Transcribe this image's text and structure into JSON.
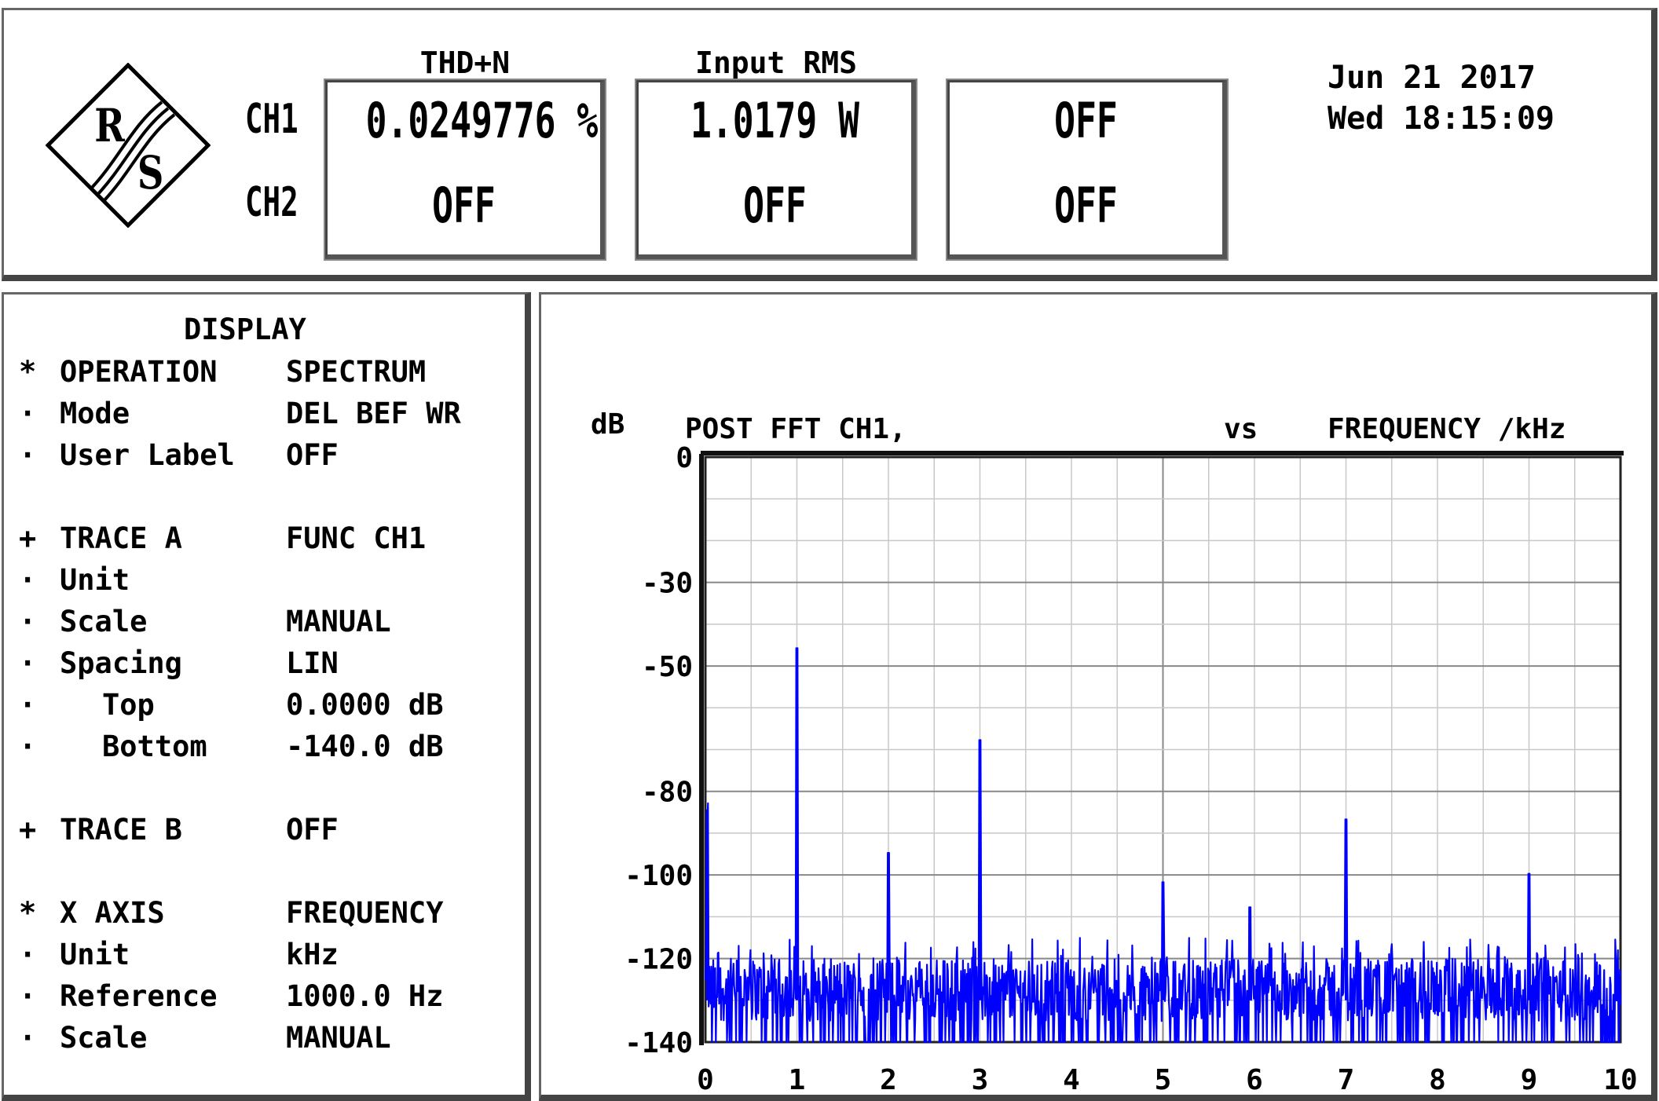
{
  "logo": {
    "icon": "rs-diamond-logo",
    "text": "R/S"
  },
  "channels": [
    "CH1",
    "CH2"
  ],
  "measurements": [
    {
      "header": "THD+N",
      "ch1": "0.0249776 %",
      "ch2": "OFF"
    },
    {
      "header": "Input RMS",
      "ch1": "1.0179  W",
      "ch2": "OFF"
    },
    {
      "header": "",
      "ch1": "OFF",
      "ch2": "OFF"
    }
  ],
  "datetime": {
    "date": "Jun 21 2017",
    "daytime": "Wed 18:15:09"
  },
  "menu": {
    "title": "DISPLAY",
    "rows": [
      {
        "marker": "*",
        "label": "OPERATION",
        "value": "SPECTRUM",
        "indent": false
      },
      {
        "marker": "·",
        "label": "Mode",
        "value": "DEL BEF WR",
        "indent": false
      },
      {
        "marker": "·",
        "label": "User Label",
        "value": "OFF",
        "indent": false
      },
      {
        "marker": "+",
        "label": "TRACE A",
        "value": "FUNC CH1",
        "indent": false
      },
      {
        "marker": "·",
        "label": "Unit",
        "value": "",
        "indent": false
      },
      {
        "marker": "·",
        "label": "Scale",
        "value": "MANUAL",
        "indent": false
      },
      {
        "marker": "·",
        "label": "Spacing",
        "value": "LIN",
        "indent": false
      },
      {
        "marker": "·",
        "label": "Top",
        "value": "0.0000 dB",
        "indent": true
      },
      {
        "marker": "·",
        "label": "Bottom",
        "value": "-140.0 dB",
        "indent": true
      },
      {
        "marker": "+",
        "label": "TRACE B",
        "value": "OFF",
        "indent": false
      },
      {
        "marker": "*",
        "label": "X AXIS",
        "value": "FREQUENCY",
        "indent": false
      },
      {
        "marker": "·",
        "label": "Unit",
        "value": "kHz",
        "indent": false
      },
      {
        "marker": "·",
        "label": "Reference",
        "value": "1000.0 Hz",
        "indent": false
      },
      {
        "marker": "·",
        "label": "Scale",
        "value": "MANUAL",
        "indent": false
      }
    ]
  },
  "chart_data": {
    "type": "line",
    "ylabel": "dB",
    "title": "POST FFT CH1,",
    "vs_label": "vs",
    "xlabel": "FREQUENCY /kHz",
    "xlim": [
      0,
      10
    ],
    "ylim": [
      -140,
      0
    ],
    "x_ticks": [
      "0",
      "1",
      "2",
      "3",
      "4",
      "5",
      "6",
      "7",
      "8",
      "9",
      "10"
    ],
    "y_ticks": [
      "0",
      "-30",
      "-50",
      "-80",
      "-100",
      "-120",
      "-140"
    ],
    "y_tick_values": [
      0,
      -30,
      -50,
      -80,
      -100,
      -120,
      -140
    ],
    "grid": true,
    "line_color": "#0000ff",
    "noise_floor_range": [
      -140,
      -120
    ],
    "peaks": [
      {
        "x": 0.02,
        "y": -88
      },
      {
        "x": 1.0,
        "y": -50
      },
      {
        "x": 2.0,
        "y": -99
      },
      {
        "x": 3.0,
        "y": -72
      },
      {
        "x": 5.0,
        "y": -106
      },
      {
        "x": 5.95,
        "y": -112
      },
      {
        "x": 7.0,
        "y": -91
      },
      {
        "x": 9.0,
        "y": -104
      }
    ]
  }
}
